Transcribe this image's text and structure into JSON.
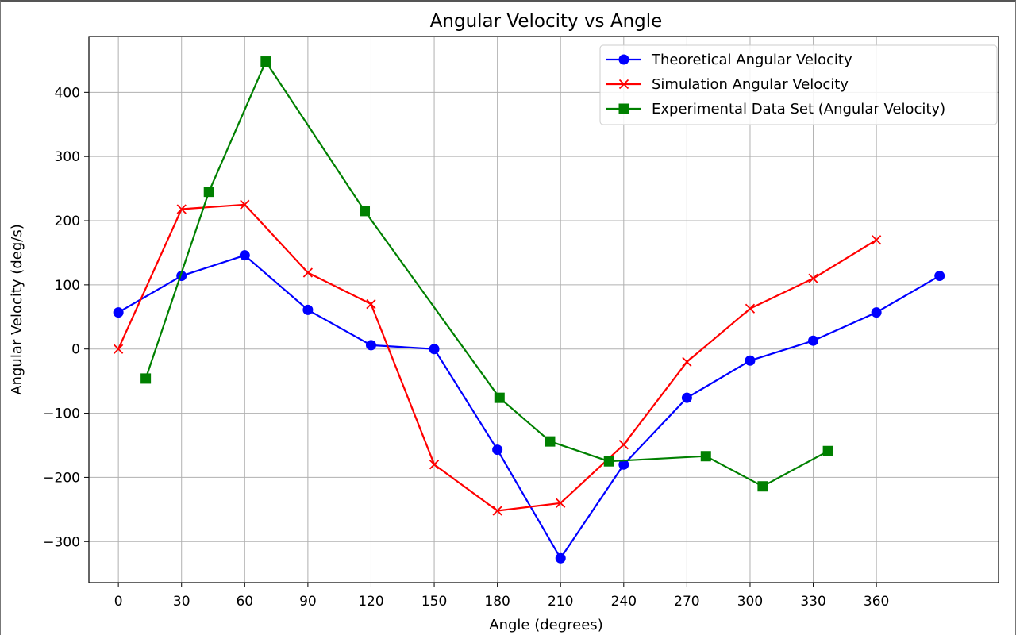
{
  "chart_data": {
    "type": "line",
    "title": "Angular Velocity vs Angle",
    "xlabel": "Angle (degrees)",
    "ylabel": "Angular Velocity (deg/s)",
    "xlim": [
      -14,
      418
    ],
    "ylim": [
      -364,
      487
    ],
    "xticks": [
      0,
      30,
      60,
      90,
      120,
      150,
      180,
      210,
      240,
      270,
      300,
      330,
      360
    ],
    "yticks": [
      -300,
      -200,
      -100,
      0,
      100,
      200,
      300,
      400
    ],
    "ytick_labels": [
      "−300",
      "−200",
      "−100",
      "0",
      "100",
      "200",
      "300",
      "400"
    ],
    "grid": true,
    "legend_position": "top-right",
    "series": [
      {
        "name": "Theoretical Angular Velocity",
        "color": "#0000ff",
        "marker": "circle",
        "x": [
          0,
          30,
          60,
          90,
          120,
          150,
          180,
          210,
          240,
          270,
          300,
          330,
          360,
          390
        ],
        "y": [
          57,
          114,
          146,
          61,
          6,
          0,
          -157,
          -326,
          -180,
          -76,
          -18,
          13,
          57,
          114
        ]
      },
      {
        "name": "Simulation Angular Velocity",
        "color": "#ff0000",
        "marker": "x",
        "x": [
          0,
          30,
          60,
          90,
          120,
          150,
          180,
          210,
          240,
          270,
          300,
          330,
          360
        ],
        "y": [
          0,
          218,
          225,
          119,
          70,
          -180,
          -252,
          -240,
          -149,
          -20,
          63,
          110,
          170
        ]
      },
      {
        "name": "Experimental Data Set (Angular Velocity)",
        "color": "#008000",
        "marker": "square",
        "x": [
          13,
          43,
          70,
          117,
          181,
          205,
          233,
          279,
          306,
          337
        ],
        "y": [
          -46,
          245,
          448,
          215,
          -76,
          -144,
          -175,
          -167,
          -214,
          -159
        ]
      }
    ]
  }
}
